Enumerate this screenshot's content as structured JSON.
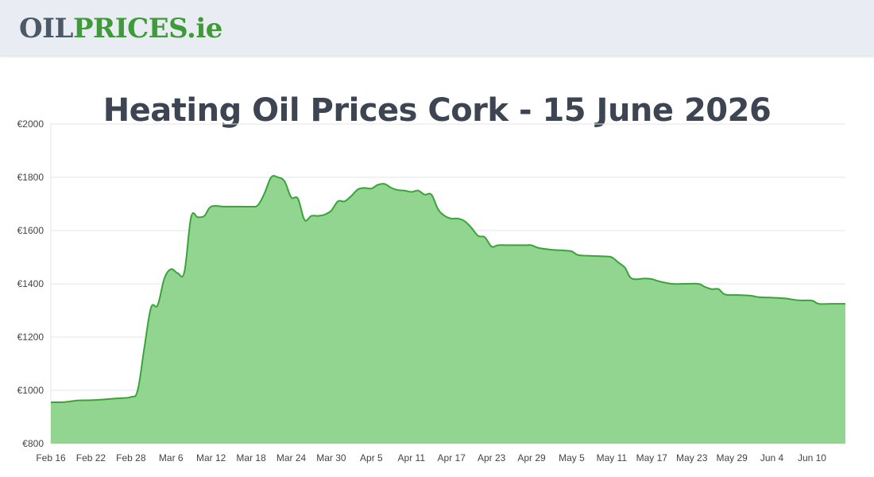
{
  "header": {
    "logo_part1": "OIL",
    "logo_part2": "PRICES",
    "logo_part3": ".ie"
  },
  "page_title": "Heating Oil Prices Cork - 15 June 2026",
  "colors": {
    "line": "#3aa33a",
    "fill": "#92d590",
    "header_bg": "#e9ecf3",
    "title": "#3d4553"
  },
  "chart_data": {
    "type": "area",
    "title": "",
    "xlabel": "",
    "ylabel": "",
    "grid": true,
    "x_range": [
      "2026-02-16",
      "2026-06-15"
    ],
    "ylim": [
      800,
      2000
    ],
    "y_ticks": [
      "€800",
      "€1000",
      "€1200",
      "€1400",
      "€1600",
      "€1800",
      "€2000"
    ],
    "x_ticks": [
      {
        "date": "2026-02-16",
        "label": "Feb 16"
      },
      {
        "date": "2026-02-22",
        "label": "Feb 22"
      },
      {
        "date": "2026-02-28",
        "label": "Feb 28"
      },
      {
        "date": "2026-03-06",
        "label": "Mar 6"
      },
      {
        "date": "2026-03-12",
        "label": "Mar 12"
      },
      {
        "date": "2026-03-18",
        "label": "Mar 18"
      },
      {
        "date": "2026-03-24",
        "label": "Mar 24"
      },
      {
        "date": "2026-03-30",
        "label": "Mar 30"
      },
      {
        "date": "2026-04-05",
        "label": "Apr 5"
      },
      {
        "date": "2026-04-11",
        "label": "Apr 11"
      },
      {
        "date": "2026-04-17",
        "label": "Apr 17"
      },
      {
        "date": "2026-04-23",
        "label": "Apr 23"
      },
      {
        "date": "2026-04-29",
        "label": "Apr 29"
      },
      {
        "date": "2026-05-05",
        "label": "May 5"
      },
      {
        "date": "2026-05-11",
        "label": "May 11"
      },
      {
        "date": "2026-05-17",
        "label": "May 17"
      },
      {
        "date": "2026-05-23",
        "label": "May 23"
      },
      {
        "date": "2026-05-29",
        "label": "May 29"
      },
      {
        "date": "2026-06-04",
        "label": "Jun 4"
      },
      {
        "date": "2026-06-10",
        "label": "Jun 10"
      }
    ],
    "series": [
      {
        "points": [
          [
            "2026-02-16",
            955
          ],
          [
            "2026-02-18",
            956
          ],
          [
            "2026-02-20",
            962
          ],
          [
            "2026-02-22",
            963
          ],
          [
            "2026-02-24",
            966
          ],
          [
            "2026-02-26",
            970
          ],
          [
            "2026-02-28",
            975
          ],
          [
            "2026-03-01",
            1000
          ],
          [
            "2026-03-02",
            1160
          ],
          [
            "2026-03-03",
            1310
          ],
          [
            "2026-03-04",
            1320
          ],
          [
            "2026-03-05",
            1420
          ],
          [
            "2026-03-06",
            1455
          ],
          [
            "2026-03-07",
            1440
          ],
          [
            "2026-03-08",
            1445
          ],
          [
            "2026-03-09",
            1650
          ],
          [
            "2026-03-10",
            1650
          ],
          [
            "2026-03-11",
            1655
          ],
          [
            "2026-03-12",
            1690
          ],
          [
            "2026-03-14",
            1690
          ],
          [
            "2026-03-16",
            1690
          ],
          [
            "2026-03-18",
            1690
          ],
          [
            "2026-03-19",
            1695
          ],
          [
            "2026-03-20",
            1740
          ],
          [
            "2026-03-21",
            1800
          ],
          [
            "2026-03-22",
            1800
          ],
          [
            "2026-03-23",
            1785
          ],
          [
            "2026-03-24",
            1725
          ],
          [
            "2026-03-25",
            1720
          ],
          [
            "2026-03-26",
            1640
          ],
          [
            "2026-03-27",
            1655
          ],
          [
            "2026-03-28",
            1655
          ],
          [
            "2026-03-29",
            1660
          ],
          [
            "2026-03-30",
            1675
          ],
          [
            "2026-03-31",
            1710
          ],
          [
            "2026-04-01",
            1710
          ],
          [
            "2026-04-02",
            1730
          ],
          [
            "2026-04-03",
            1755
          ],
          [
            "2026-04-04",
            1760
          ],
          [
            "2026-04-05",
            1758
          ],
          [
            "2026-04-06",
            1772
          ],
          [
            "2026-04-07",
            1775
          ],
          [
            "2026-04-08",
            1760
          ],
          [
            "2026-04-09",
            1752
          ],
          [
            "2026-04-10",
            1750
          ],
          [
            "2026-04-11",
            1745
          ],
          [
            "2026-04-12",
            1750
          ],
          [
            "2026-04-13",
            1735
          ],
          [
            "2026-04-14",
            1735
          ],
          [
            "2026-04-15",
            1680
          ],
          [
            "2026-04-16",
            1655
          ],
          [
            "2026-04-17",
            1645
          ],
          [
            "2026-04-18",
            1645
          ],
          [
            "2026-04-19",
            1635
          ],
          [
            "2026-04-20",
            1610
          ],
          [
            "2026-04-21",
            1580
          ],
          [
            "2026-04-22",
            1575
          ],
          [
            "2026-04-23",
            1540
          ],
          [
            "2026-04-24",
            1545
          ],
          [
            "2026-04-26",
            1545
          ],
          [
            "2026-04-28",
            1545
          ],
          [
            "2026-04-29",
            1545
          ],
          [
            "2026-04-30",
            1535
          ],
          [
            "2026-05-02",
            1528
          ],
          [
            "2026-05-04",
            1525
          ],
          [
            "2026-05-05",
            1522
          ],
          [
            "2026-05-06",
            1508
          ],
          [
            "2026-05-08",
            1505
          ],
          [
            "2026-05-10",
            1503
          ],
          [
            "2026-05-11",
            1500
          ],
          [
            "2026-05-12",
            1480
          ],
          [
            "2026-05-13",
            1460
          ],
          [
            "2026-05-14",
            1420
          ],
          [
            "2026-05-16",
            1420
          ],
          [
            "2026-05-17",
            1418
          ],
          [
            "2026-05-18",
            1410
          ],
          [
            "2026-05-20",
            1400
          ],
          [
            "2026-05-22",
            1400
          ],
          [
            "2026-05-24",
            1400
          ],
          [
            "2026-05-25",
            1388
          ],
          [
            "2026-05-26",
            1380
          ],
          [
            "2026-05-27",
            1380
          ],
          [
            "2026-05-28",
            1360
          ],
          [
            "2026-05-30",
            1358
          ],
          [
            "2026-06-01",
            1355
          ],
          [
            "2026-06-02",
            1350
          ],
          [
            "2026-06-04",
            1348
          ],
          [
            "2026-06-06",
            1345
          ],
          [
            "2026-06-08",
            1338
          ],
          [
            "2026-06-10",
            1337
          ],
          [
            "2026-06-11",
            1325
          ],
          [
            "2026-06-13",
            1325
          ],
          [
            "2026-06-15",
            1325
          ]
        ]
      }
    ]
  }
}
